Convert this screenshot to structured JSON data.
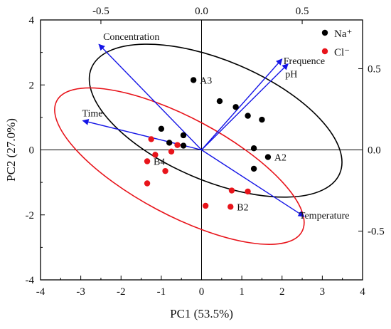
{
  "chart_data": {
    "type": "scatter",
    "xlabel": "PC1 (53.5%)",
    "ylabel": "PC2 (27.0%)",
    "xlim": [
      -4,
      4
    ],
    "ylim": [
      -4,
      4
    ],
    "x_ticks": [
      "-4",
      "-3",
      "-2",
      "-1",
      "0",
      "1",
      "2",
      "3",
      "4"
    ],
    "y_ticks": [
      "-4",
      "-2",
      "0",
      "2",
      "4"
    ],
    "top_axis": {
      "lim": [
        -0.8,
        0.8
      ],
      "ticks": [
        "-0.5",
        "0.0",
        "0.5"
      ]
    },
    "right_axis": {
      "lim": [
        -0.8,
        0.8
      ],
      "ticks": [
        "-0.5",
        "0.0",
        "0.5"
      ]
    },
    "reference_lines": {
      "x": 0,
      "y": 0
    },
    "legend_position": "top-right",
    "series": [
      {
        "name": "Na⁺",
        "color": "#000000",
        "points": [
          {
            "x": -0.2,
            "y": 2.15,
            "label": "A3"
          },
          {
            "x": 0.45,
            "y": 1.5
          },
          {
            "x": 0.85,
            "y": 1.32
          },
          {
            "x": 1.15,
            "y": 1.05
          },
          {
            "x": 1.5,
            "y": 0.93
          },
          {
            "x": -1.0,
            "y": 0.65
          },
          {
            "x": -0.45,
            "y": 0.45
          },
          {
            "x": -0.8,
            "y": 0.22
          },
          {
            "x": -0.45,
            "y": 0.13
          },
          {
            "x": 1.3,
            "y": 0.05
          },
          {
            "x": 1.65,
            "y": -0.22,
            "label": "A2"
          },
          {
            "x": 1.3,
            "y": -0.58
          }
        ]
      },
      {
        "name": "Cl⁻",
        "color": "#e8141b",
        "points": [
          {
            "x": -1.25,
            "y": 0.33
          },
          {
            "x": -0.6,
            "y": 0.15
          },
          {
            "x": -0.75,
            "y": -0.05
          },
          {
            "x": -1.15,
            "y": -0.15
          },
          {
            "x": -1.35,
            "y": -0.35,
            "label": "B4"
          },
          {
            "x": -0.9,
            "y": -0.65
          },
          {
            "x": -1.35,
            "y": -1.03
          },
          {
            "x": 0.75,
            "y": -1.25
          },
          {
            "x": 1.15,
            "y": -1.28
          },
          {
            "x": 0.1,
            "y": -1.72
          },
          {
            "x": 0.72,
            "y": -1.75,
            "label": "B2"
          }
        ]
      }
    ],
    "loadings": [
      {
        "name": "Concentration",
        "x": -0.51,
        "y": 0.65
      },
      {
        "name": "Frequence",
        "x": 0.4,
        "y": 0.56
      },
      {
        "name": "pH",
        "x": 0.43,
        "y": 0.53
      },
      {
        "name": "Time",
        "x": -0.59,
        "y": 0.18
      },
      {
        "name": "Temperature",
        "x": 0.51,
        "y": -0.41
      }
    ],
    "ellipses": [
      {
        "group": "Na⁺",
        "center": [
          0.35,
          0.9
        ],
        "semi_axes": [
          3.35,
          1.85
        ],
        "angle_deg": -23,
        "color": "#000000"
      },
      {
        "group": "Cl⁻",
        "center": [
          -0.55,
          -0.5
        ],
        "semi_axes": [
          3.45,
          1.5
        ],
        "angle_deg": -28,
        "color": "#e8141b"
      }
    ],
    "colors": {
      "arrow": "#1414e6",
      "frame": "#000000"
    }
  }
}
